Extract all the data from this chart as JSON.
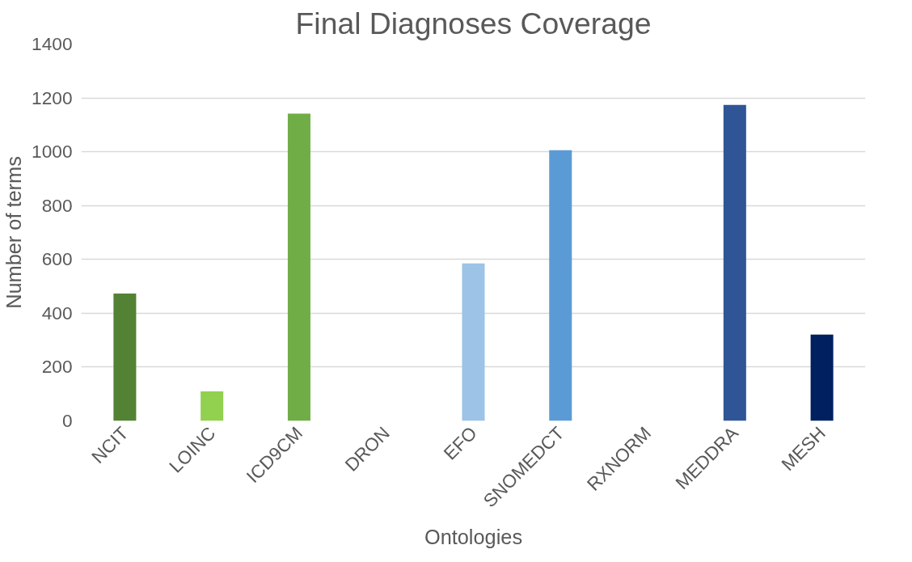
{
  "chart_data": {
    "type": "bar",
    "title": "Final Diagnoses Coverage",
    "xlabel": "Ontologies",
    "ylabel": "Number of terms",
    "categories": [
      "NCIT",
      "LOINC",
      "ICD9CM",
      "DRON",
      "EFO",
      "SNOMEDCT",
      "RXNORM",
      "MEDDRA",
      "MESH"
    ],
    "values": [
      473,
      110,
      1142,
      0,
      585,
      1006,
      0,
      1174,
      321
    ],
    "colors": [
      "#548235",
      "#92d050",
      "#70ad47",
      "#a9d18e",
      "#9dc3e6",
      "#5b9bd5",
      "#8faadc",
      "#2f5597",
      "#002060"
    ],
    "ylim": [
      0,
      1400
    ],
    "yticks": [
      0,
      200,
      400,
      600,
      800,
      1000,
      1200,
      1400
    ],
    "grid": "y"
  }
}
